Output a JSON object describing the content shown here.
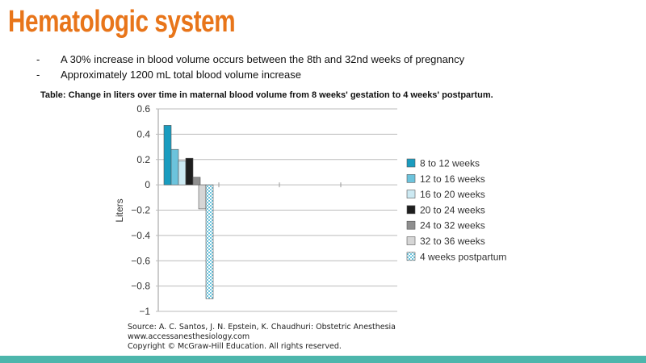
{
  "slide": {
    "title": "Hematologic system",
    "bullets": [
      {
        "marker": "-",
        "text": "A 30% increase in blood volume occurs between the 8th and 32nd weeks of pregnancy"
      },
      {
        "marker": "-",
        "text": "Approximately 1200 mL total blood volume increase"
      }
    ],
    "caption": "Table: Change in liters over time in maternal blood volume from 8 weeks' gestation to 4 weeks' postpartum.",
    "source": [
      "Source: A. C. Santos, J. N. Epstein, K. Chaudhuri: Obstetric Anesthesia",
      "www.accessanesthesiology.com",
      "Copyright © McGraw-Hill Education.  All rights reserved."
    ],
    "footer_color": "#4db6ac",
    "title_color": "#e8751a"
  },
  "chart_data": {
    "type": "bar",
    "title": "",
    "xlabel": "",
    "ylabel": "Liters",
    "ylim": [
      -1,
      0.6
    ],
    "yticks": [
      "0.6",
      "0.4",
      "0.2",
      "0",
      "−0.2",
      "−0.4",
      "−0.6",
      "−0.8",
      "−1"
    ],
    "ytick_values": [
      0.6,
      0.4,
      0.2,
      0,
      -0.2,
      -0.4,
      -0.6,
      -0.8,
      -1
    ],
    "grid": true,
    "legend_position": "right",
    "series": [
      {
        "name": "8 to 12 weeks",
        "value": 0.47,
        "color": "#1a9cbf"
      },
      {
        "name": "12 to 16 weeks",
        "value": 0.28,
        "color": "#6cc3dc"
      },
      {
        "name": "16 to 20 weeks",
        "value": 0.19,
        "color": "#cce9f2"
      },
      {
        "name": "20 to 24 weeks",
        "value": 0.21,
        "color": "#1e1e1e"
      },
      {
        "name": "24 to 32 weeks",
        "value": 0.06,
        "color": "#8f8f8f"
      },
      {
        "name": "32 to 36 weeks",
        "value": -0.19,
        "color": "#d6d6d6"
      },
      {
        "name": "4 weeks postpartum",
        "value": -0.9,
        "color": "#6cc3dc",
        "pattern": "checker"
      }
    ]
  }
}
